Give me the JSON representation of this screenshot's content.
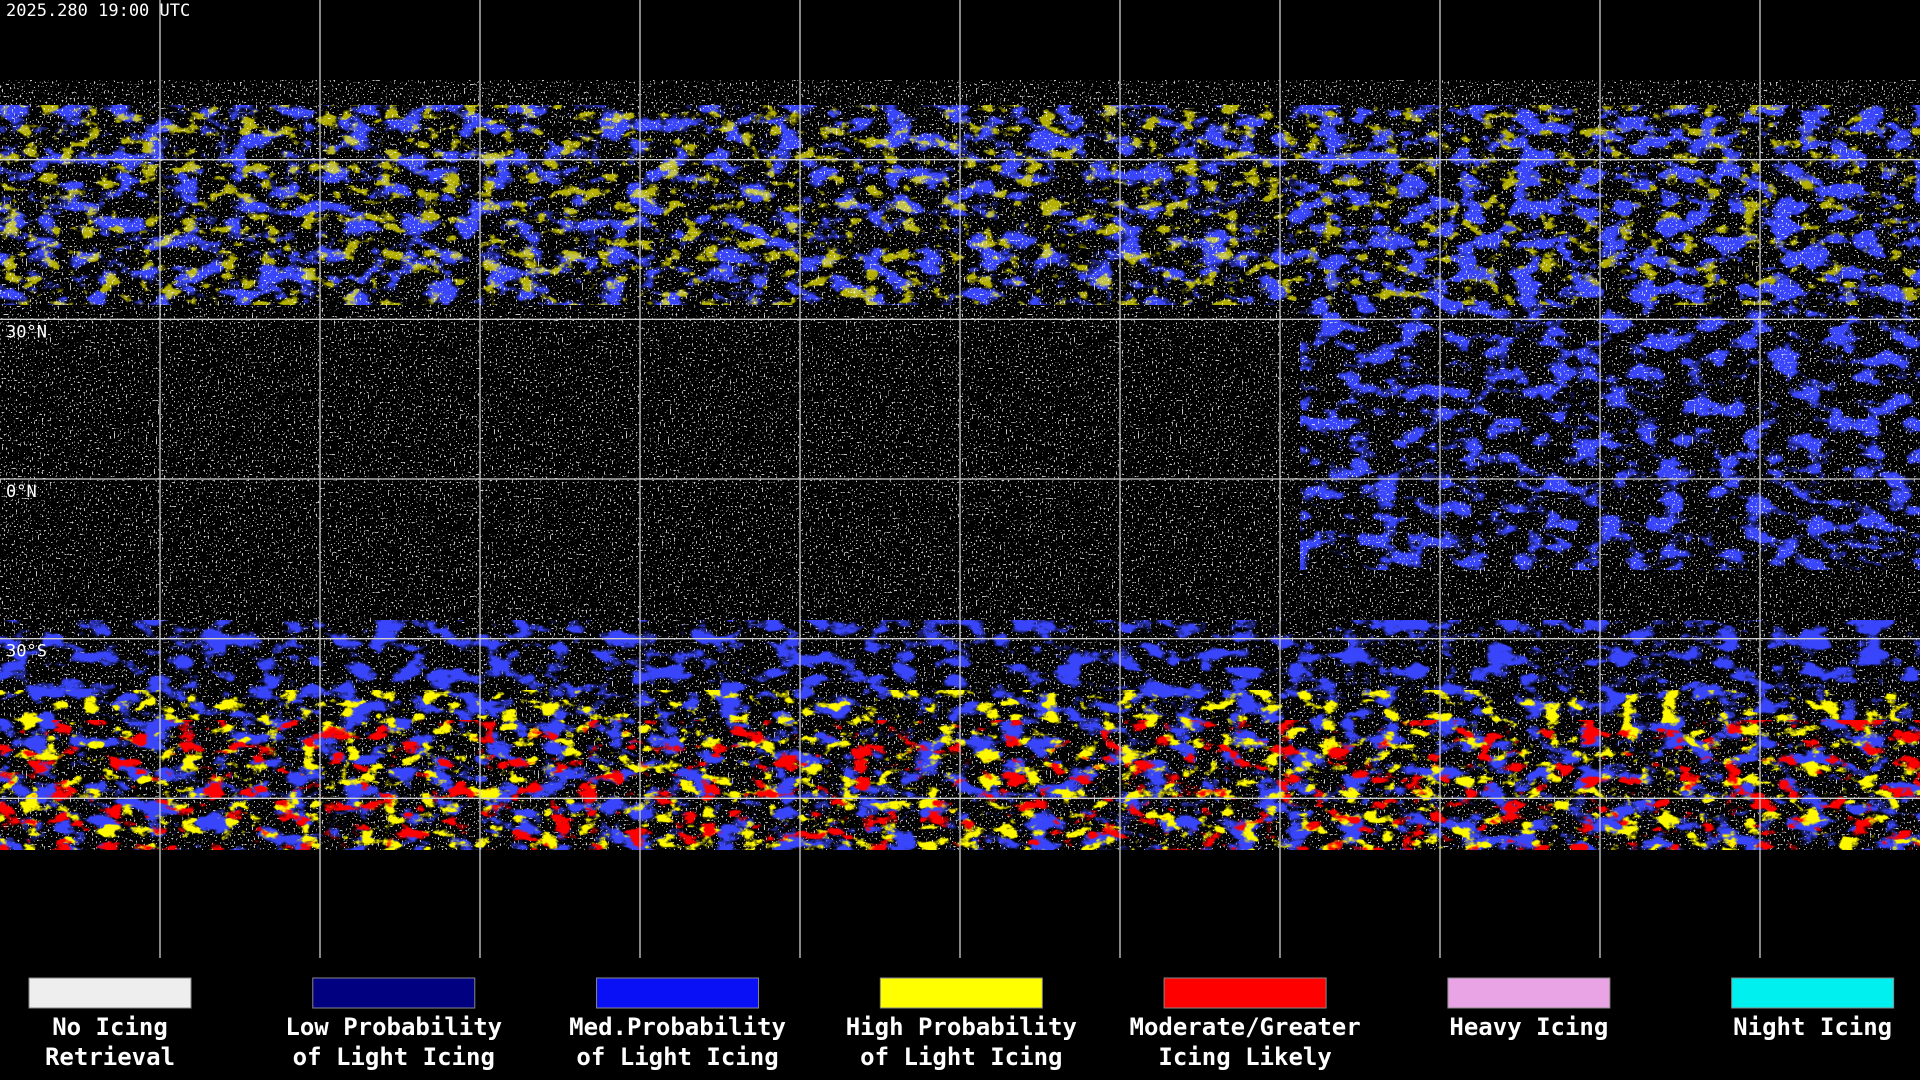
{
  "header": {
    "timestamp": "2025.280 19:00 UTC"
  },
  "map": {
    "lat_labels": [
      "30°N",
      "0°N",
      "30°S"
    ]
  },
  "legend": {
    "items": [
      {
        "lines": [
          "No Icing",
          "Retrieval"
        ],
        "color": "#eeeeee"
      },
      {
        "lines": [
          "Low Probability",
          "of Light Icing"
        ],
        "color": "#000080"
      },
      {
        "lines": [
          "Med.Probability",
          "of Light Icing"
        ],
        "color": "#0a10f5"
      },
      {
        "lines": [
          "High Probability",
          "of Light Icing"
        ],
        "color": "#ffff00"
      },
      {
        "lines": [
          "Moderate/Greater",
          "Icing Likely"
        ],
        "color": "#ff0000"
      },
      {
        "lines": [
          "Heavy Icing"
        ],
        "color": "#e8a4e4"
      },
      {
        "lines": [
          "Night Icing"
        ],
        "color": "#00f0f0"
      }
    ]
  }
}
